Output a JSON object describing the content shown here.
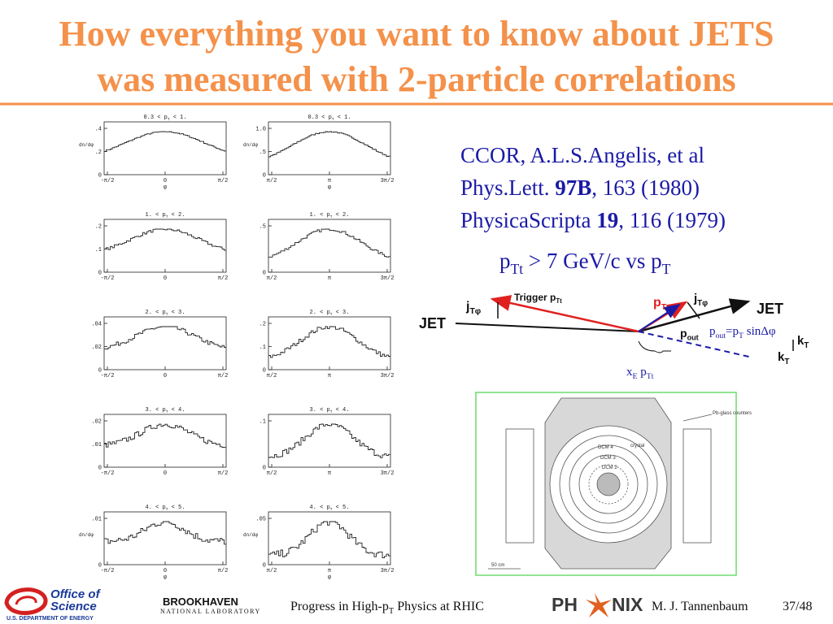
{
  "title": {
    "lines": [
      "How everything you want to know about JETS",
      "was measured with 2-particle correlations"
    ]
  },
  "panels": [
    {
      "title": [
        {
          "text": "0.3 < p"
        },
        {
          "text": "T",
          "sub": true
        },
        {
          "text": " < 1."
        }
      ],
      "yticks": [
        ".4",
        ".2",
        "0"
      ],
      "xticks": [
        "-π/2",
        "0",
        "π/2"
      ],
      "ylabel": "dn/dφ",
      "xlabel": "φ"
    },
    {
      "title": [
        {
          "text": "0.3 < p"
        },
        {
          "text": "T",
          "sub": true
        },
        {
          "text": " < 1."
        }
      ],
      "yticks": [
        "1.0",
        ".5",
        "0"
      ],
      "xticks": [
        "π/2",
        "π",
        "3π/2"
      ],
      "ylabel": "dn/dφ",
      "xlabel": "φ"
    },
    {
      "title": [
        {
          "text": "1. < p"
        },
        {
          "text": "T",
          "sub": true
        },
        {
          "text": " < 2."
        }
      ],
      "yticks": [
        ".2",
        ".1",
        "0"
      ],
      "xticks": [
        "-π/2",
        "0",
        "π/2"
      ]
    },
    {
      "title": [
        {
          "text": "1. < p"
        },
        {
          "text": "T",
          "sub": true
        },
        {
          "text": " < 2."
        }
      ],
      "yticks": [
        ".5",
        "0"
      ],
      "xticks": [
        "π/2",
        "π",
        "3π/2"
      ]
    },
    {
      "title": [
        {
          "text": "2. < p"
        },
        {
          "text": "T",
          "sub": true
        },
        {
          "text": " < 3."
        }
      ],
      "yticks": [
        ".04",
        ".02",
        "0"
      ],
      "xticks": [
        "-π/2",
        "0",
        "π/2"
      ]
    },
    {
      "title": [
        {
          "text": "2. < p"
        },
        {
          "text": "T",
          "sub": true
        },
        {
          "text": " < 3."
        }
      ],
      "yticks": [
        ".2",
        ".1",
        "0"
      ],
      "xticks": [
        "π/2",
        "π",
        "3π/2"
      ]
    },
    {
      "title": [
        {
          "text": "3. < p"
        },
        {
          "text": "T",
          "sub": true
        },
        {
          "text": " < 4."
        }
      ],
      "yticks": [
        ".02",
        ".01",
        "0"
      ],
      "xticks": [
        "-π/2",
        "0",
        "π/2"
      ]
    },
    {
      "title": [
        {
          "text": "3. < p"
        },
        {
          "text": "T",
          "sub": true
        },
        {
          "text": " < 4."
        }
      ],
      "yticks": [
        ".1",
        "0"
      ],
      "xticks": [
        "π/2",
        "π",
        "3π/2"
      ]
    },
    {
      "title": [
        {
          "text": "4. < p"
        },
        {
          "text": "T",
          "sub": true
        },
        {
          "text": " < 5."
        }
      ],
      "yticks": [
        ".01",
        "0"
      ],
      "xticks": [
        "-π/2",
        "0",
        "π/2"
      ],
      "ylabel": "dn/dφ",
      "xlabel": "φ"
    },
    {
      "title": [
        {
          "text": "4. < p"
        },
        {
          "text": "T",
          "sub": true
        },
        {
          "text": " < 5."
        }
      ],
      "yticks": [
        ".05",
        "0"
      ],
      "xticks": [
        "π/2",
        "π",
        "3π/2"
      ],
      "ylabel": "dn/dφ",
      "xlabel": "φ"
    }
  ],
  "citation": [
    [
      {
        "text": "CCOR, A.L.S.Angelis, et al"
      }
    ],
    [
      {
        "text": "Phys.Lett. "
      },
      {
        "text": "97B",
        "bold": true
      },
      {
        "text": ", 163 (1980)"
      }
    ],
    [
      {
        "text": "PhysicaScripta "
      },
      {
        "text": "19",
        "bold": true
      },
      {
        "text": ", 116 (1979)"
      }
    ],
    [
      {
        "text": "p"
      },
      {
        "text": "Tt",
        "sub": true
      },
      {
        "text": " > 7 GeV/c vs p"
      },
      {
        "text": "T",
        "sub": true
      }
    ]
  ],
  "diagram": {
    "jet_left": [
      {
        "text": "JET"
      }
    ],
    "jet_right": [
      {
        "text": "JET"
      }
    ],
    "jt_left": [
      {
        "text": "j"
      },
      {
        "text": "Tφ",
        "sub": true
      }
    ],
    "trigger": [
      {
        "text": "Trigger "
      },
      {
        "text": "p"
      },
      {
        "text": "Tt",
        "sub": true
      }
    ],
    "pt": [
      {
        "text": "p"
      },
      {
        "text": "T",
        "sub": true
      }
    ],
    "jt_right": [
      {
        "text": "j"
      },
      {
        "text": "Tφ",
        "sub": true
      }
    ],
    "pout": [
      {
        "text": "p"
      },
      {
        "text": "out",
        "sub": true
      }
    ],
    "kt_right": [
      {
        "text": "k"
      },
      {
        "text": "T",
        "sub": true
      }
    ],
    "kt_bottom": [
      {
        "text": "k"
      },
      {
        "text": "T",
        "sub": true
      }
    ],
    "formula": [
      {
        "text": "p"
      },
      {
        "text": "out",
        "sub": true
      },
      {
        "text": "=p"
      },
      {
        "text": "T",
        "sub": true
      },
      {
        "text": " sinΔφ"
      }
    ],
    "xe": [
      {
        "text": "x"
      },
      {
        "text": "E",
        "sub": true
      },
      {
        "text": " p"
      },
      {
        "text": "Tt",
        "sub": true
      }
    ]
  },
  "detector": {
    "counters": "Pb-glass counters",
    "crystal": "crystal",
    "dcm4": "DCM 4",
    "dcm3": "DCM 3",
    "dcm2": "DCM 2",
    "scale": "50 cm"
  },
  "footer": {
    "office": [
      "Office of",
      "Science"
    ],
    "doe": "U.S. DEPARTMENT OF ENERGY",
    "bnl": "BROOKHAVEN",
    "bnl_sub": "NATIONAL LABORATORY",
    "talk": [
      {
        "text": "Progress in High-p"
      },
      {
        "text": "T",
        "sub": true
      },
      {
        "text": " Physics at RHIC"
      }
    ],
    "phenix_left": "PH",
    "phenix_right": "NIX",
    "author": "M. J. Tannenbaum",
    "page": "37/48"
  }
}
